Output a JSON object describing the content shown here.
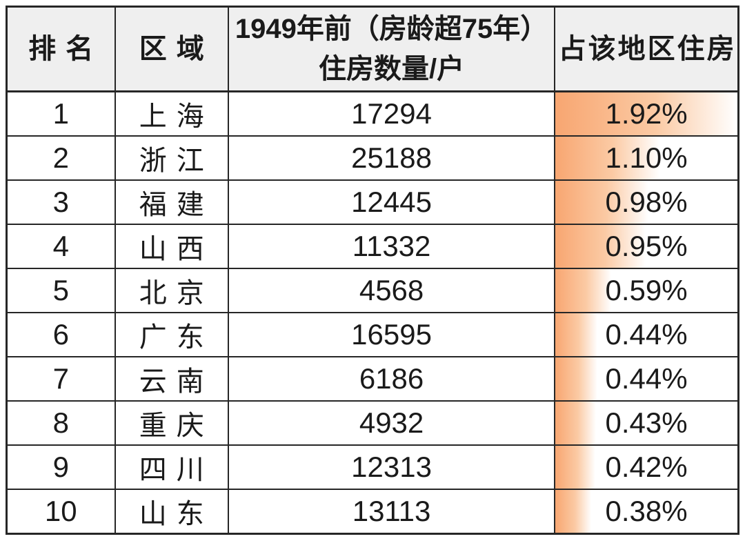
{
  "table": {
    "headers": {
      "rank": "排名",
      "region": "区域",
      "count_line1": "1949年前（房龄超75年）",
      "count_line2": "住房数量/户",
      "share": "占该地区住房"
    },
    "rows": [
      {
        "rank": "1",
        "region": "上海",
        "count": "17294",
        "share": "1.92%",
        "share_value": 1.92
      },
      {
        "rank": "2",
        "region": "浙江",
        "count": "25188",
        "share": "1.10%",
        "share_value": 1.1
      },
      {
        "rank": "3",
        "region": "福建",
        "count": "12445",
        "share": "0.98%",
        "share_value": 0.98
      },
      {
        "rank": "4",
        "region": "山西",
        "count": "11332",
        "share": "0.95%",
        "share_value": 0.95
      },
      {
        "rank": "5",
        "region": "北京",
        "count": "4568",
        "share": "0.59%",
        "share_value": 0.59
      },
      {
        "rank": "6",
        "region": "广东",
        "count": "16595",
        "share": "0.44%",
        "share_value": 0.44
      },
      {
        "rank": "7",
        "region": "云南",
        "count": "6186",
        "share": "0.44%",
        "share_value": 0.44
      },
      {
        "rank": "8",
        "region": "重庆",
        "count": "4932",
        "share": "0.43%",
        "share_value": 0.43
      },
      {
        "rank": "9",
        "region": "四川",
        "count": "12313",
        "share": "0.42%",
        "share_value": 0.42
      },
      {
        "rank": "10",
        "region": "山东",
        "count": "13113",
        "share": "0.38%",
        "share_value": 0.38
      }
    ]
  },
  "chart_data": {
    "type": "table",
    "columns": [
      "排名",
      "区域",
      "1949年前（房龄超75年）住房数量/户",
      "占该地区住房"
    ],
    "rows": [
      [
        1,
        "上海",
        17294,
        "1.92%"
      ],
      [
        2,
        "浙江",
        25188,
        "1.10%"
      ],
      [
        3,
        "福建",
        12445,
        "0.98%"
      ],
      [
        4,
        "山西",
        11332,
        "0.95%"
      ],
      [
        5,
        "北京",
        4568,
        "0.59%"
      ],
      [
        6,
        "广东",
        16595,
        "0.44%"
      ],
      [
        7,
        "云南",
        6186,
        "0.44%"
      ],
      [
        8,
        "重庆",
        4932,
        "0.43%"
      ],
      [
        9,
        "四川",
        12313,
        "0.42%"
      ],
      [
        10,
        "山东",
        13113,
        "0.38%"
      ]
    ],
    "databars": {
      "column": "占该地区住房",
      "values_percent": [
        1.92,
        1.1,
        0.98,
        0.95,
        0.59,
        0.44,
        0.44,
        0.43,
        0.42,
        0.38
      ],
      "scale": "bar width proportional to value / max (max = 1.92%)",
      "fill": "horizontal gradient orange to white",
      "legend_position": "none",
      "grid": "full cell borders"
    }
  },
  "colors": {
    "header_bg": "#efefef",
    "border": "#262626",
    "text": "#1a1a1a",
    "bar_gradient_start": "#f8a671",
    "bar_gradient_mid": "#fbcaa4",
    "bar_gradient_end": "#ffffff"
  }
}
